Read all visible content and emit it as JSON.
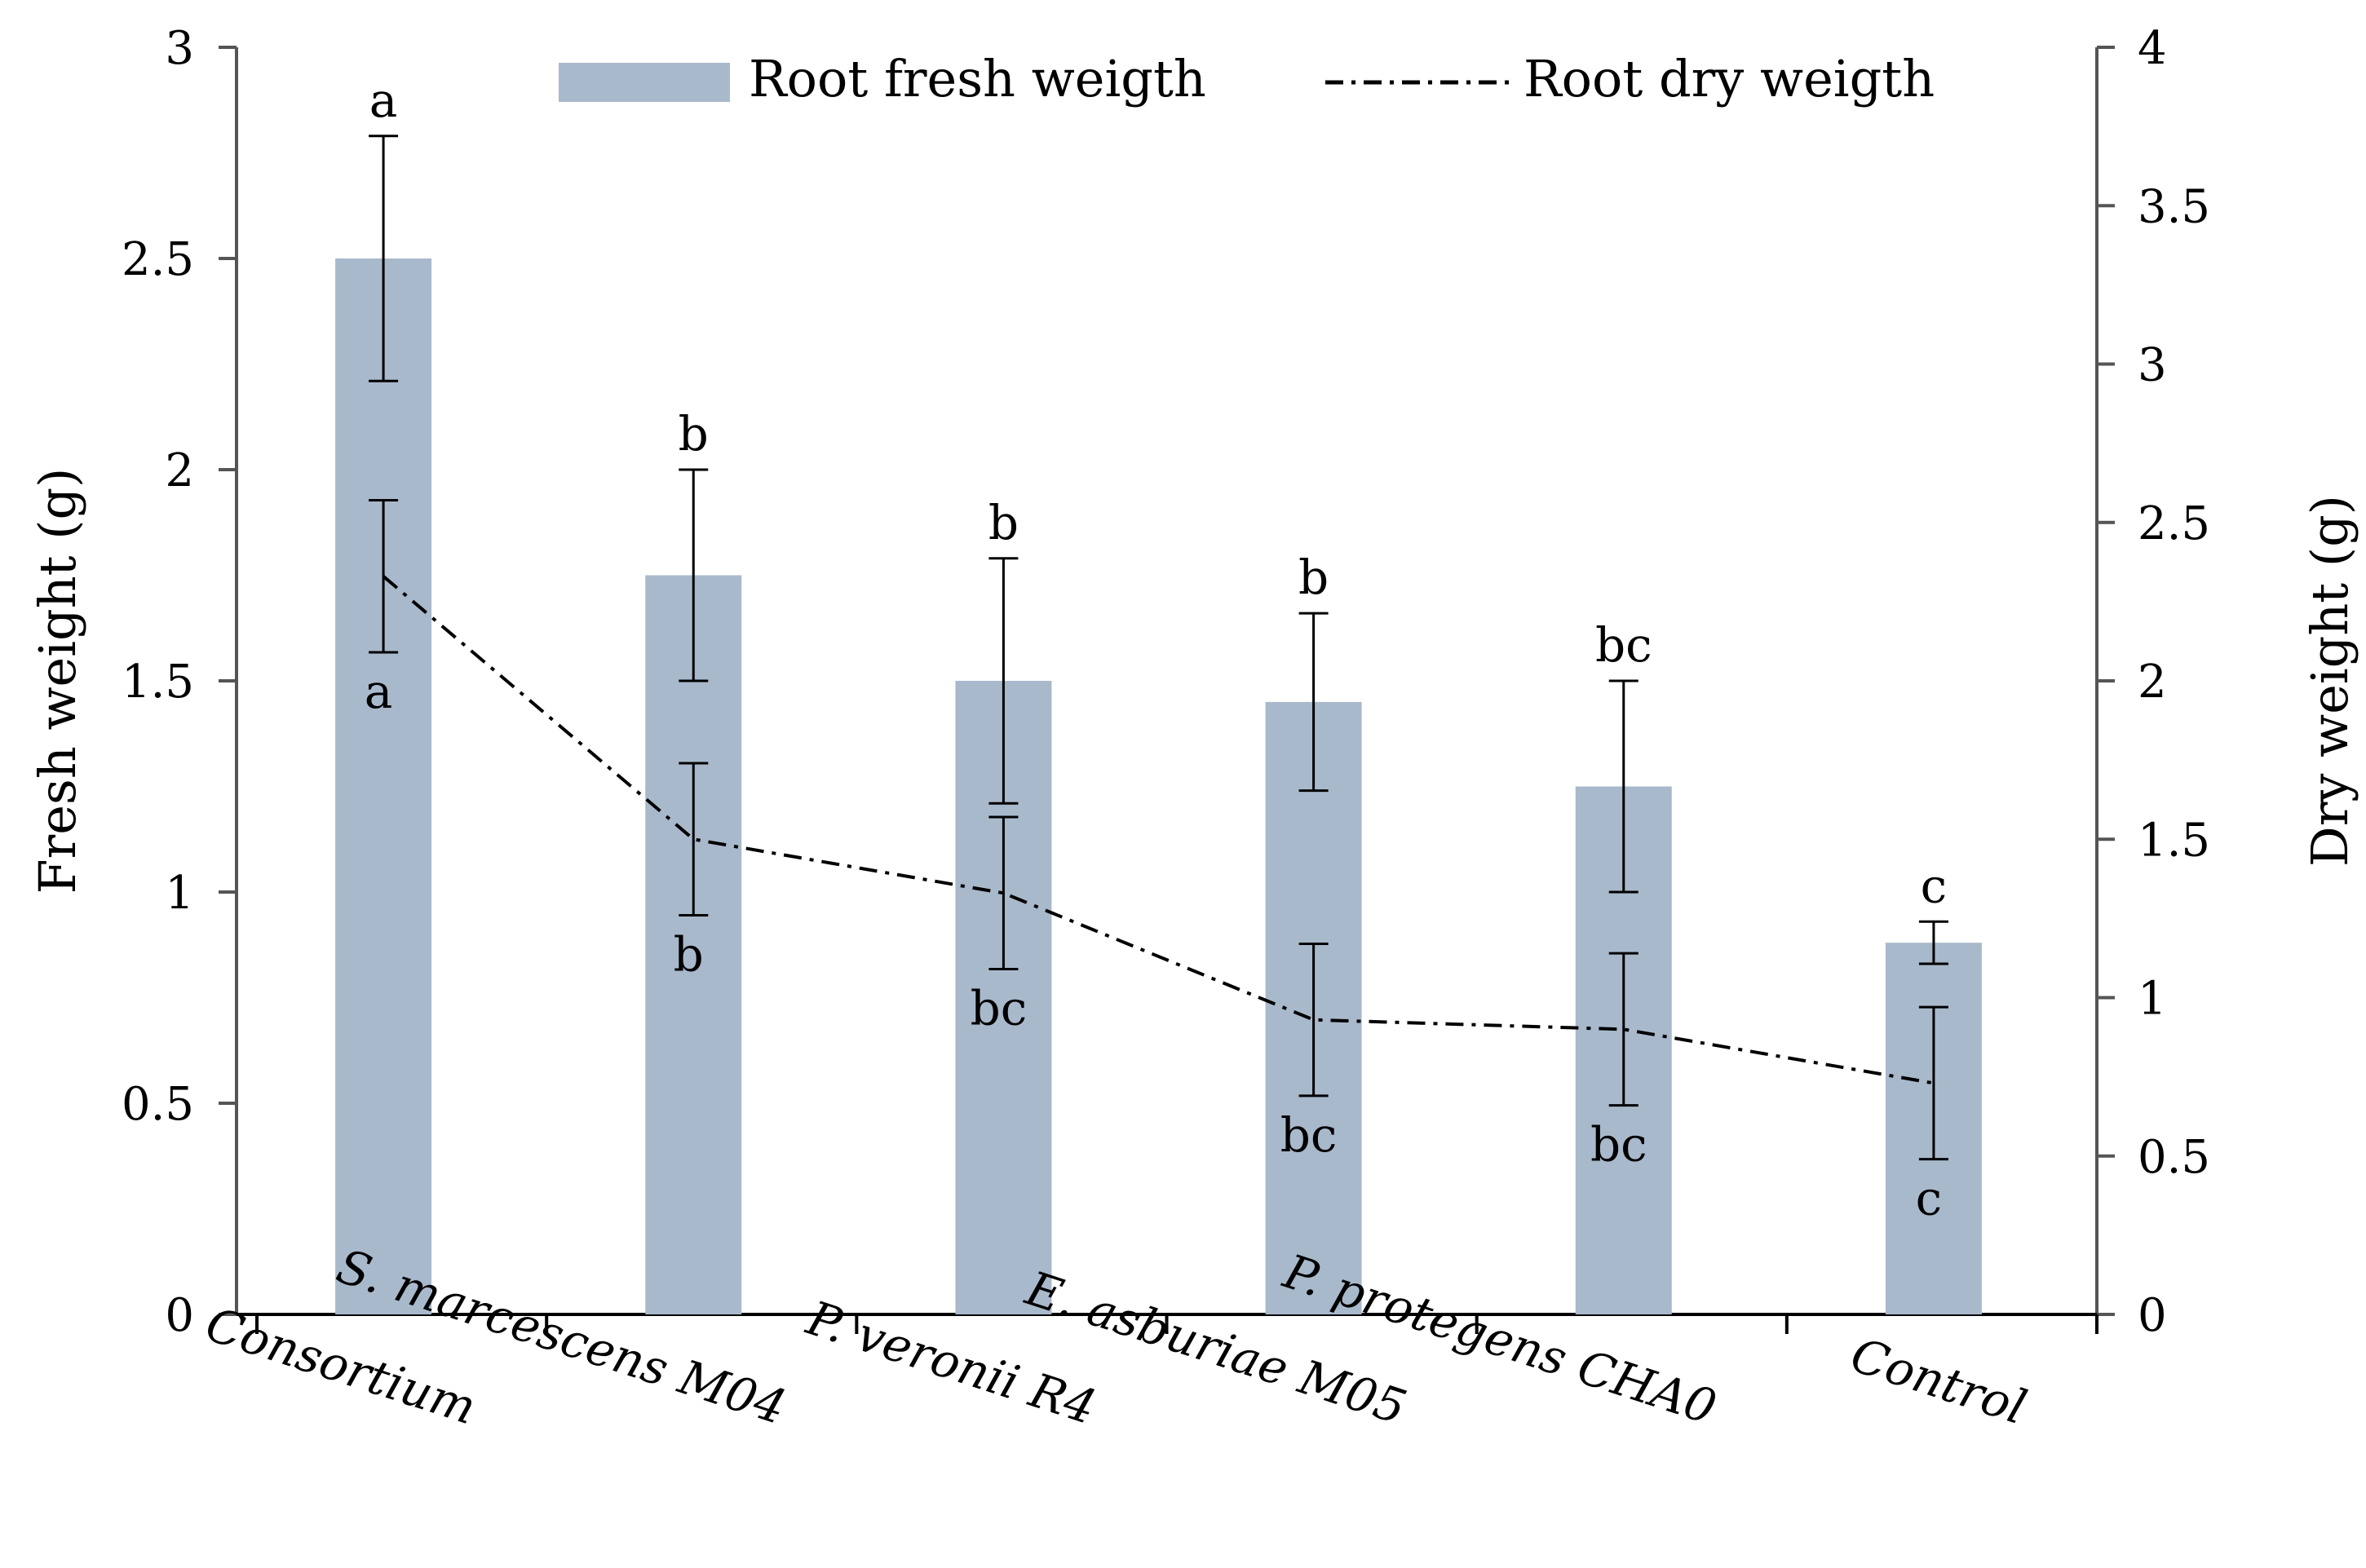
{
  "chart_data": {
    "type": "bar+line",
    "categories": [
      "Consortium",
      "S. marcescens M04",
      "P. veronii R4",
      "E. asburiae M05",
      "P. protegens CHA0",
      "Control"
    ],
    "series": [
      {
        "name": "Root fresh weigth",
        "kind": "bar",
        "axis": "left",
        "color": "#a9b9cc",
        "values": [
          2.5,
          1.75,
          1.5,
          1.45,
          1.25,
          0.88
        ],
        "error": [
          0.29,
          0.25,
          0.29,
          0.21,
          0.25,
          0.05
        ],
        "letters": [
          "a",
          "b",
          "b",
          "b",
          "bc",
          "c"
        ]
      },
      {
        "name": "Root dry weigth",
        "kind": "line",
        "axis": "right",
        "color": "#000000",
        "values": [
          2.33,
          1.5,
          1.33,
          0.93,
          0.9,
          0.73
        ],
        "error": [
          0.24,
          0.24,
          0.24,
          0.24,
          0.24,
          0.24
        ],
        "letters": [
          "a",
          "b",
          "bc",
          "bc",
          "bc",
          "c"
        ]
      }
    ],
    "ylabel": "Fresh weight (g)",
    "y2label": "Dry weight (g)",
    "ylim": [
      0,
      3
    ],
    "y2lim": [
      0,
      4
    ],
    "yticks": [
      "0",
      "0.5",
      "1",
      "1.5",
      "2",
      "2.5",
      "3"
    ],
    "y2ticks": [
      "0",
      "0.5",
      "1",
      "1.5",
      "2",
      "2.5",
      "3",
      "3.5",
      "4"
    ],
    "legend_position": "top"
  }
}
